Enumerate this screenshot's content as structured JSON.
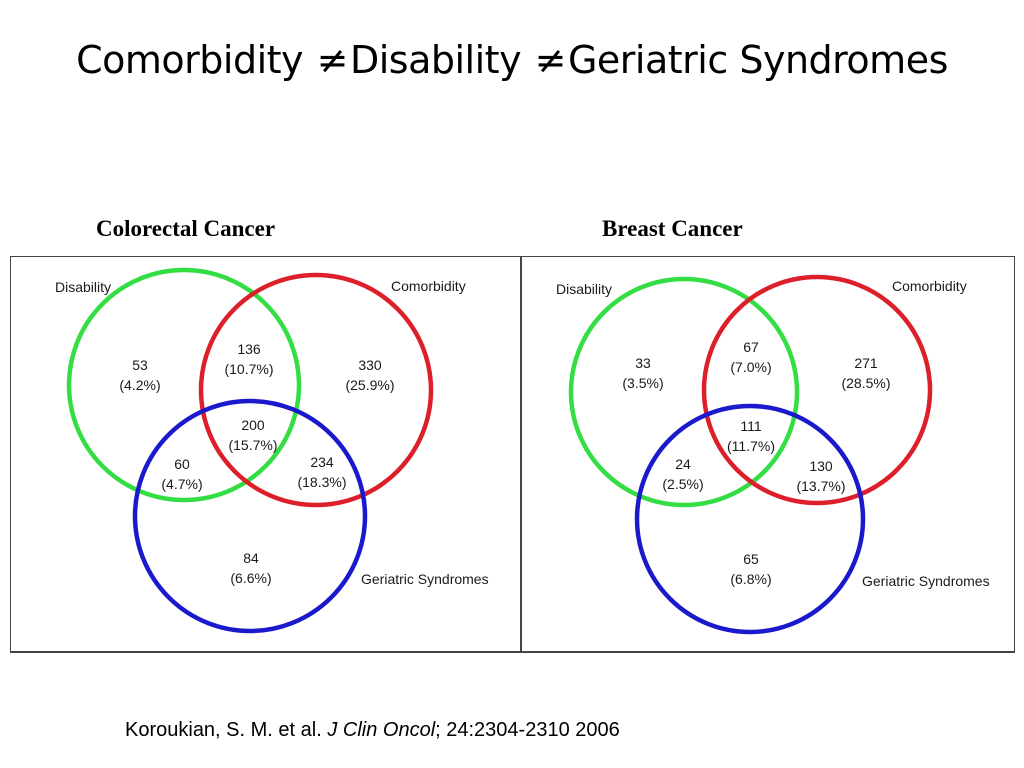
{
  "slide": {
    "title_parts": [
      "Comorbidity ",
      "Disability ",
      "Geriatric Syndromes"
    ],
    "neq_symbol": "≠"
  },
  "diagrams": [
    {
      "title": "Colorectal Cancer",
      "set_labels": {
        "disability": "Disability",
        "comorbidity": "Comorbidity",
        "geriatric": "Geriatric Syndromes"
      },
      "regions": {
        "disability_only": {
          "count": "53",
          "pct": "(4.2%)"
        },
        "disability_comorbidity": {
          "count": "136",
          "pct": "(10.7%)"
        },
        "comorbidity_only": {
          "count": "330",
          "pct": "(25.9%)"
        },
        "all_three": {
          "count": "200",
          "pct": "(15.7%)"
        },
        "disability_geriatric": {
          "count": "60",
          "pct": "(4.7%)"
        },
        "comorbidity_geriatric": {
          "count": "234",
          "pct": "(18.3%)"
        },
        "geriatric_only": {
          "count": "84",
          "pct": "(6.6%)"
        }
      }
    },
    {
      "title": "Breast Cancer",
      "set_labels": {
        "disability": "Disability",
        "comorbidity": "Comorbidity",
        "geriatric": "Geriatric Syndromes"
      },
      "regions": {
        "disability_only": {
          "count": "33",
          "pct": "(3.5%)"
        },
        "disability_comorbidity": {
          "count": "67",
          "pct": "(7.0%)"
        },
        "comorbidity_only": {
          "count": "271",
          "pct": "(28.5%)"
        },
        "all_three": {
          "count": "111",
          "pct": "(11.7%)"
        },
        "disability_geriatric": {
          "count": "24",
          "pct": "(2.5%)"
        },
        "comorbidity_geriatric": {
          "count": "130",
          "pct": "(13.7%)"
        },
        "geriatric_only": {
          "count": "65",
          "pct": "(6.8%)"
        }
      }
    }
  ],
  "colors": {
    "disability": "#33dd44",
    "comorbidity": "#dd1f2a",
    "geriatric": "#1a1acc"
  },
  "citation": {
    "authors": "Koroukian, S. M. et al. ",
    "journal": "J Clin Oncol",
    "details": "; 24:2304-2310 2006"
  }
}
